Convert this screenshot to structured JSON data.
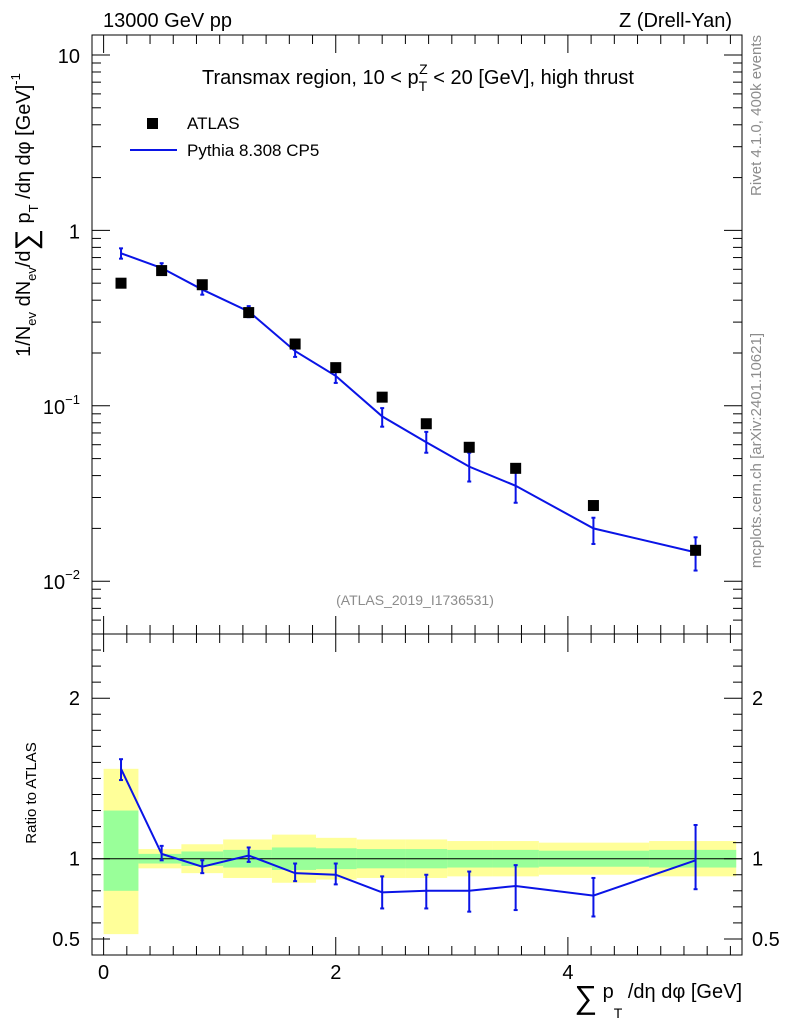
{
  "header": {
    "left": "13000 GeV pp",
    "right": "Z (Drell-Yan)"
  },
  "side_labels": {
    "rivet": "Rivet 4.1.0,  400k events",
    "mcplots": "mcplots.cern.ch [arXiv:2401.10621]"
  },
  "colors": {
    "data": "#000000",
    "mc": "#0a14e6",
    "band_inner": "#99ff99",
    "band_outer": "#ffff99",
    "watermark": "#8c8c8c"
  },
  "chart_data": [
    {
      "type": "scatter",
      "panel": "main",
      "title": "Transmax region, 10 < p_T^Z < 20 [GeV], high thrust",
      "title_parts": {
        "pre": "Transmax region, 10 < p",
        "sup": "Z",
        "sub": "T",
        "post": " < 20 [GeV], high thrust"
      },
      "ylabel": "1/N_ev dN_ev/d∑p_T/dη dφ  [GeV]^-1",
      "ylabel_parts": {
        "a": "1/N",
        "a_sub": "ev",
        "b": " dN",
        "b_sub": "ev",
        "c": "/d",
        "sum": "∑",
        "d": " p",
        "d_sub": "T",
        "e": " /dη dφ  [GeV]",
        "e_sup": "-1"
      },
      "yscale": "log",
      "ylim": [
        0.005,
        13
      ],
      "xlim": [
        -0.1,
        5.5
      ],
      "y_tick_labels": [
        {
          "v": 10,
          "base": "10",
          "exp": ""
        },
        {
          "v": 1,
          "base": "1",
          "exp": ""
        },
        {
          "v": 0.1,
          "base": "10",
          "exp": "−1"
        },
        {
          "v": 0.01,
          "base": "10",
          "exp": "−2"
        }
      ],
      "legend": {
        "placement": "top-left",
        "entries": [
          "ATLAS",
          "Pythia 8.308 CP5"
        ]
      },
      "watermark": "(ATLAS_2019_I1736531)",
      "series": [
        {
          "name": "ATLAS",
          "style": "markers",
          "x": [
            0.15,
            0.5,
            0.85,
            1.25,
            1.65,
            2.0,
            2.4,
            2.78,
            3.15,
            3.55,
            4.22,
            5.1
          ],
          "values": [
            0.5,
            0.59,
            0.49,
            0.34,
            0.225,
            0.165,
            0.112,
            0.079,
            0.058,
            0.044,
            0.027,
            0.015
          ]
        },
        {
          "name": "Pythia 8.308 CP5",
          "style": "line",
          "x": [
            0.15,
            0.5,
            0.85,
            1.25,
            1.65,
            2.0,
            2.4,
            2.78,
            3.15,
            3.55,
            4.22,
            5.1
          ],
          "values": [
            0.74,
            0.61,
            0.46,
            0.345,
            0.205,
            0.148,
            0.087,
            0.062,
            0.045,
            0.035,
            0.02,
            0.0146
          ],
          "err_low": [
            0.69,
            0.57,
            0.43,
            0.32,
            0.19,
            0.135,
            0.076,
            0.054,
            0.037,
            0.028,
            0.0163,
            0.0115
          ],
          "err_high": [
            0.79,
            0.65,
            0.49,
            0.37,
            0.22,
            0.16,
            0.097,
            0.071,
            0.054,
            0.042,
            0.023,
            0.0178
          ]
        }
      ]
    },
    {
      "type": "line",
      "panel": "ratio",
      "ylabel": "Ratio to ATLAS",
      "xlabel": "∑ p_T /dη dφ [GeV]",
      "xlabel_parts": {
        "sum": "∑",
        "p": " p",
        "sub": "T",
        "rest": " /dη dφ [GeV]"
      },
      "ylim": [
        0.4,
        2.4
      ],
      "xlim": [
        -0.1,
        5.5
      ],
      "y_tick_labels": [
        "0.5",
        "1",
        "2"
      ],
      "y_tick_values": [
        0.5,
        1,
        2
      ],
      "x_tick_labels": [
        "0",
        "2",
        "4"
      ],
      "x_tick_values": [
        0,
        2,
        4
      ],
      "bands": [
        {
          "x0": 0.0,
          "x1": 0.3,
          "outer": [
            0.53,
            1.56
          ],
          "inner": [
            0.8,
            1.3
          ]
        },
        {
          "x0": 0.3,
          "x1": 0.67,
          "outer": [
            0.94,
            1.06
          ],
          "inner": [
            0.97,
            1.03
          ]
        },
        {
          "x0": 0.67,
          "x1": 1.03,
          "outer": [
            0.91,
            1.09
          ],
          "inner": [
            0.955,
            1.045
          ]
        },
        {
          "x0": 1.03,
          "x1": 1.45,
          "outer": [
            0.88,
            1.12
          ],
          "inner": [
            0.945,
            1.055
          ]
        },
        {
          "x0": 1.45,
          "x1": 1.83,
          "outer": [
            0.85,
            1.15
          ],
          "inner": [
            0.93,
            1.07
          ]
        },
        {
          "x0": 1.83,
          "x1": 2.18,
          "outer": [
            0.87,
            1.13
          ],
          "inner": [
            0.935,
            1.065
          ]
        },
        {
          "x0": 2.18,
          "x1": 2.6,
          "outer": [
            0.88,
            1.12
          ],
          "inner": [
            0.94,
            1.06
          ]
        },
        {
          "x0": 2.6,
          "x1": 2.96,
          "outer": [
            0.88,
            1.12
          ],
          "inner": [
            0.94,
            1.06
          ]
        },
        {
          "x0": 2.96,
          "x1": 3.35,
          "outer": [
            0.89,
            1.11
          ],
          "inner": [
            0.945,
            1.055
          ]
        },
        {
          "x0": 3.35,
          "x1": 3.75,
          "outer": [
            0.89,
            1.11
          ],
          "inner": [
            0.945,
            1.055
          ]
        },
        {
          "x0": 3.75,
          "x1": 4.7,
          "outer": [
            0.9,
            1.1
          ],
          "inner": [
            0.95,
            1.05
          ]
        },
        {
          "x0": 4.7,
          "x1": 5.45,
          "outer": [
            0.89,
            1.11
          ],
          "inner": [
            0.945,
            1.055
          ]
        }
      ],
      "series": [
        {
          "name": "Pythia 8.308 CP5 / ATLAS",
          "x": [
            0.15,
            0.5,
            0.85,
            1.25,
            1.65,
            2.0,
            2.4,
            2.78,
            3.15,
            3.55,
            4.22,
            5.1
          ],
          "values": [
            1.56,
            1.03,
            0.95,
            1.02,
            0.91,
            0.9,
            0.79,
            0.8,
            0.8,
            0.83,
            0.77,
            0.99
          ],
          "err_low": [
            1.49,
            0.99,
            0.91,
            0.98,
            0.86,
            0.84,
            0.69,
            0.69,
            0.67,
            0.68,
            0.64,
            0.81
          ],
          "err_high": [
            1.62,
            1.08,
            0.99,
            1.07,
            0.97,
            0.97,
            0.89,
            0.9,
            0.92,
            0.96,
            0.88,
            1.21
          ]
        }
      ]
    }
  ]
}
